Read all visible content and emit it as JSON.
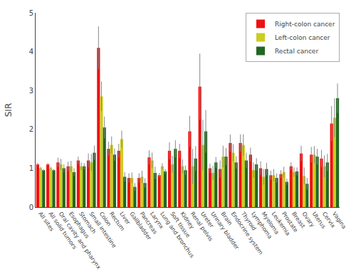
{
  "chart_data": {
    "type": "bar",
    "categories": [
      "All sites",
      "All solid tumors",
      "Oral cavity and pharynx",
      "Esophagus",
      "Stomach",
      "Small intestine",
      "Colon",
      "Rectum",
      "Liver",
      "Gallbladder",
      "Pancreas",
      "Larynx",
      "Lung and bronchus",
      "Soft tissue",
      "Kidney",
      "Renal pelvis",
      "Ureter",
      "Urinary bladder",
      "Brain",
      "Endocrine system",
      "Thyroid",
      "Lymphoma",
      "Myeloma",
      "Leukemia",
      "Prostate",
      "Breast",
      "Ovary",
      "Uterus",
      "Cervix",
      "Vagina"
    ],
    "series": [
      {
        "name": "Right-colon cancer",
        "color": "#ee1111",
        "values": [
          1.1,
          1.1,
          1.15,
          1.05,
          1.2,
          1.2,
          4.1,
          1.5,
          1.45,
          0.75,
          0.75,
          1.28,
          0.82,
          1.45,
          1.45,
          1.95,
          3.1,
          1.0,
          0.98,
          1.65,
          1.65,
          1.35,
          1.0,
          0.82,
          0.85,
          1.05,
          1.38,
          1.35,
          1.25,
          2.15
        ],
        "errors": [
          0.04,
          0.04,
          0.12,
          0.12,
          0.1,
          0.18,
          0.55,
          0.18,
          0.18,
          0.12,
          0.12,
          0.18,
          0.06,
          0.22,
          0.18,
          0.4,
          0.85,
          0.12,
          0.22,
          0.22,
          0.22,
          0.18,
          0.18,
          0.12,
          0.1,
          0.1,
          0.2,
          0.2,
          0.22,
          0.45
        ]
      },
      {
        "name": "Left-colon cancer",
        "color": "#cccc22",
        "values": [
          1.0,
          1.0,
          1.1,
          1.05,
          1.05,
          1.15,
          2.85,
          1.6,
          1.75,
          0.75,
          0.78,
          1.2,
          1.05,
          1.1,
          1.05,
          1.05,
          1.6,
          0.88,
          1.3,
          1.4,
          1.6,
          0.95,
          0.78,
          0.82,
          0.9,
          0.9,
          0.8,
          1.35,
          1.05,
          2.3
        ],
        "errors": [
          0.04,
          0.04,
          0.14,
          0.14,
          0.1,
          0.22,
          0.38,
          0.22,
          0.22,
          0.14,
          0.16,
          0.2,
          0.08,
          0.22,
          0.18,
          0.45,
          0.65,
          0.18,
          0.28,
          0.22,
          0.28,
          0.2,
          0.2,
          0.16,
          0.14,
          0.12,
          0.22,
          0.22,
          0.28,
          0.5
        ]
      },
      {
        "name": "Rectal cancer",
        "color": "#226622",
        "values": [
          0.95,
          0.95,
          1.0,
          0.9,
          1.05,
          1.4,
          2.05,
          1.35,
          0.78,
          0.52,
          0.62,
          0.88,
          0.92,
          1.5,
          0.95,
          1.25,
          1.95,
          1.15,
          1.3,
          1.15,
          1.2,
          1.1,
          0.98,
          0.75,
          0.65,
          0.92,
          0.6,
          1.3,
          1.15,
          2.8
        ],
        "errors": [
          0.03,
          0.03,
          0.1,
          0.1,
          0.08,
          0.18,
          0.28,
          0.16,
          0.12,
          0.1,
          0.12,
          0.16,
          0.06,
          0.22,
          0.12,
          0.32,
          0.55,
          0.14,
          0.22,
          0.16,
          0.2,
          0.16,
          0.16,
          0.12,
          0.08,
          0.1,
          0.15,
          0.2,
          0.22,
          0.38
        ]
      }
    ],
    "ylabel": "SIR",
    "ylim": [
      0,
      5
    ],
    "yticks": [
      0,
      1,
      2,
      3,
      4,
      5
    ],
    "legend": "upper right",
    "grid": false
  }
}
